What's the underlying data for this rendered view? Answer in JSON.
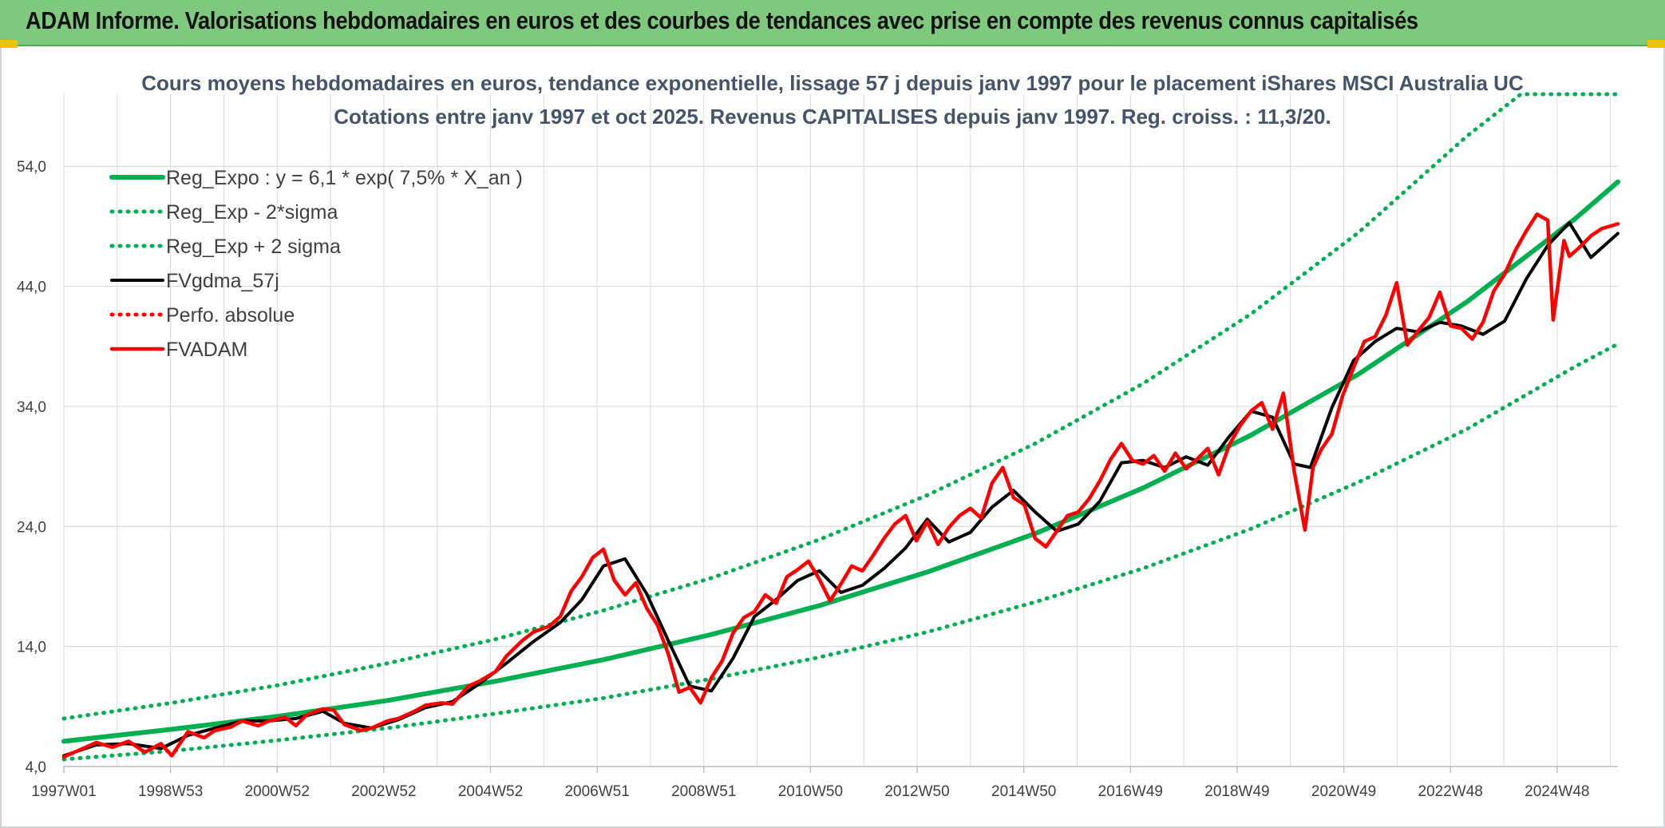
{
  "header": {
    "title": "ADAM Informe. Valorisations hebdomadaires en euros et des courbes de tendances avec prise en compte des revenus connus capitalisés"
  },
  "colors": {
    "banner": "#7fc97f",
    "trend": "#00b050",
    "smooth": "#000000",
    "price": "#ff0000",
    "grid": "#d9d9d9"
  },
  "chart_data": {
    "type": "line",
    "title": "Cours moyens hebdomadaires en euros, tendance exponentielle, lissage 57 j depuis janv 1997 pour le placement iShares MSCI Australia UC",
    "subtitle": "Cotations entre janv 1997 et oct 2025. Revenus CAPITALISES depuis janv 1997. Reg. croiss. : 11,3/20.",
    "xlabel": "",
    "ylabel": "",
    "ylim": [
      4,
      60
    ],
    "yticks": [
      4,
      14,
      24,
      34,
      44,
      54
    ],
    "ytick_labels": [
      "4,0",
      "14,0",
      "24,0",
      "34,0",
      "44,0",
      "54,0"
    ],
    "xlim": [
      1997.0,
      2025.8
    ],
    "xtick_labels": [
      "1997W01",
      "1998W53",
      "2000W52",
      "2002W52",
      "2004W52",
      "2006W51",
      "2008W51",
      "2010W50",
      "2012W50",
      "2014W50",
      "2016W49",
      "2018W49",
      "2020W49",
      "2022W48",
      "2024W48"
    ],
    "grid": true,
    "legend_position": "top-left",
    "series": [
      {
        "name": "Reg_Expo : y = 6,1 * exp( 7,5% *  X_an )",
        "style": "solid",
        "color": "#00b050",
        "x": [
          1997,
          1999,
          2001,
          2003,
          2005,
          2007,
          2009,
          2011,
          2013,
          2015,
          2017,
          2019,
          2021,
          2023,
          2025,
          2025.8
        ],
        "y": [
          6.1,
          7.1,
          8.2,
          9.5,
          11.1,
          12.9,
          15.0,
          17.4,
          20.2,
          23.4,
          27.2,
          31.6,
          36.7,
          42.7,
          49.6,
          52.7
        ]
      },
      {
        "name": "Reg_Exp - 2*sigma",
        "style": "dotted",
        "color": "#00b050",
        "x": [
          1997,
          1999,
          2001,
          2003,
          2005,
          2007,
          2009,
          2011,
          2013,
          2015,
          2017,
          2019,
          2021,
          2023,
          2025,
          2025.8
        ],
        "y": [
          4.6,
          5.3,
          6.2,
          7.2,
          8.4,
          9.7,
          11.3,
          13.1,
          15.2,
          17.7,
          20.5,
          23.8,
          27.7,
          32.1,
          37.3,
          39.2
        ]
      },
      {
        "name": "Reg_Exp + 2 sigma",
        "style": "dotted",
        "color": "#00b050",
        "x": [
          1997,
          1999,
          2001,
          2003,
          2005,
          2007,
          2009,
          2011,
          2013,
          2015,
          2017,
          2019,
          2021,
          2023,
          2024,
          2025.8
        ],
        "y": [
          8.0,
          9.3,
          10.8,
          12.6,
          14.6,
          17.0,
          19.7,
          22.9,
          26.6,
          30.9,
          35.9,
          41.7,
          48.5,
          56.5,
          60,
          60
        ]
      },
      {
        "name": "FVgdma_57j",
        "style": "solid",
        "color": "#000000",
        "x": [
          1997.0,
          1997.6,
          1998.2,
          1998.8,
          1999.3,
          1999.8,
          2000.3,
          2000.8,
          2001.3,
          2001.8,
          2002.2,
          2002.7,
          2003.2,
          2003.7,
          2004.2,
          2004.7,
          2005.2,
          2005.7,
          2006.2,
          2006.6,
          2007.0,
          2007.4,
          2007.8,
          2008.2,
          2008.6,
          2009.0,
          2009.4,
          2009.8,
          2010.2,
          2010.6,
          2011.0,
          2011.4,
          2011.8,
          2012.2,
          2012.6,
          2013.0,
          2013.4,
          2013.8,
          2014.2,
          2014.6,
          2015.0,
          2015.4,
          2015.8,
          2016.2,
          2016.6,
          2017.0,
          2017.4,
          2017.8,
          2018.2,
          2018.6,
          2019.0,
          2019.4,
          2019.8,
          2020.1,
          2020.5,
          2020.9,
          2021.3,
          2021.7,
          2022.1,
          2022.5,
          2022.9,
          2023.3,
          2023.7,
          2024.1,
          2024.5,
          2024.9,
          2025.3,
          2025.8
        ],
        "y": [
          4.9,
          5.8,
          5.9,
          5.5,
          6.6,
          7.2,
          7.8,
          7.8,
          8.0,
          8.6,
          7.6,
          7.2,
          7.9,
          8.9,
          9.4,
          10.9,
          12.6,
          14.4,
          16.0,
          17.9,
          20.7,
          21.3,
          18.4,
          14.5,
          10.7,
          10.3,
          13.0,
          16.5,
          17.9,
          19.5,
          20.3,
          18.5,
          19.1,
          20.5,
          22.2,
          24.6,
          22.7,
          23.5,
          25.6,
          27.0,
          25.2,
          23.6,
          24.2,
          26.1,
          29.3,
          29.5,
          28.9,
          29.8,
          29.1,
          31.5,
          33.6,
          33.1,
          29.2,
          28.9,
          33.9,
          37.8,
          39.4,
          40.5,
          40.2,
          41.0,
          40.7,
          40.0,
          41.1,
          44.6,
          47.4,
          49.3,
          46.4,
          48.4
        ]
      },
      {
        "name": "Perfo. absolue",
        "style": "dotted",
        "color": "#ff0000",
        "x": [],
        "y": []
      },
      {
        "name": "FVADAM",
        "style": "solid",
        "color": "#ff0000",
        "x": [
          1997.0,
          1997.3,
          1997.6,
          1997.9,
          1998.2,
          1998.5,
          1998.8,
          1999.0,
          1999.3,
          1999.6,
          1999.8,
          2000.1,
          2000.3,
          2000.6,
          2000.8,
          2001.1,
          2001.3,
          2001.5,
          2001.8,
          2002.0,
          2002.2,
          2002.5,
          2002.7,
          2003.0,
          2003.2,
          2003.5,
          2003.7,
          2004.0,
          2004.2,
          2004.5,
          2004.7,
          2005.0,
          2005.2,
          2005.5,
          2005.7,
          2006.0,
          2006.2,
          2006.4,
          2006.6,
          2006.8,
          2007.0,
          2007.2,
          2007.4,
          2007.6,
          2007.8,
          2008.0,
          2008.2,
          2008.4,
          2008.6,
          2008.8,
          2009.0,
          2009.2,
          2009.4,
          2009.6,
          2009.8,
          2010.0,
          2010.2,
          2010.4,
          2010.6,
          2010.8,
          2011.0,
          2011.2,
          2011.4,
          2011.6,
          2011.8,
          2012.0,
          2012.2,
          2012.4,
          2012.6,
          2012.8,
          2013.0,
          2013.2,
          2013.4,
          2013.6,
          2013.8,
          2014.0,
          2014.2,
          2014.4,
          2014.6,
          2014.8,
          2015.0,
          2015.2,
          2015.4,
          2015.6,
          2015.8,
          2016.0,
          2016.2,
          2016.4,
          2016.6,
          2016.8,
          2017.0,
          2017.2,
          2017.4,
          2017.6,
          2017.8,
          2018.0,
          2018.2,
          2018.4,
          2018.6,
          2018.8,
          2019.0,
          2019.2,
          2019.4,
          2019.6,
          2019.8,
          2020.0,
          2020.15,
          2020.3,
          2020.5,
          2020.7,
          2020.9,
          2021.1,
          2021.3,
          2021.5,
          2021.7,
          2021.9,
          2022.1,
          2022.3,
          2022.5,
          2022.7,
          2022.9,
          2023.1,
          2023.3,
          2023.5,
          2023.7,
          2023.9,
          2024.1,
          2024.3,
          2024.5,
          2024.6,
          2024.8,
          2024.9,
          2025.1,
          2025.3,
          2025.5,
          2025.8
        ],
        "y": [
          4.8,
          5.4,
          6.0,
          5.6,
          6.1,
          5.2,
          5.9,
          4.9,
          6.9,
          6.4,
          7.0,
          7.3,
          7.8,
          7.4,
          7.8,
          8.1,
          7.4,
          8.3,
          8.8,
          8.7,
          7.5,
          7.0,
          7.2,
          7.8,
          8.0,
          8.6,
          9.1,
          9.3,
          9.2,
          10.7,
          11.1,
          11.9,
          13.2,
          14.5,
          15.2,
          15.7,
          16.5,
          18.6,
          19.8,
          21.4,
          22.1,
          19.5,
          18.3,
          19.3,
          17.2,
          15.8,
          13.4,
          10.2,
          10.6,
          9.3,
          11.4,
          12.8,
          15.1,
          16.4,
          16.9,
          18.3,
          17.6,
          19.8,
          20.4,
          21.1,
          19.6,
          17.8,
          19.2,
          20.7,
          20.3,
          21.6,
          23.0,
          24.2,
          24.9,
          22.8,
          24.4,
          22.5,
          23.9,
          24.9,
          25.5,
          24.7,
          27.6,
          28.9,
          26.4,
          25.8,
          23.0,
          22.3,
          23.6,
          24.9,
          25.2,
          26.3,
          27.8,
          29.6,
          30.9,
          29.5,
          29.2,
          29.9,
          28.6,
          30.1,
          28.8,
          29.6,
          30.5,
          28.3,
          30.8,
          32.4,
          33.6,
          34.3,
          32.1,
          35.1,
          28.6,
          23.7,
          28.9,
          30.4,
          31.7,
          34.9,
          37.2,
          39.4,
          39.8,
          41.6,
          44.3,
          39.1,
          40.3,
          41.4,
          43.5,
          40.7,
          40.5,
          39.6,
          41.0,
          43.6,
          45.0,
          47.0,
          48.6,
          50.0,
          49.5,
          41.2,
          47.8,
          46.5,
          47.3,
          48.2,
          48.8,
          49.2
        ]
      }
    ]
  }
}
